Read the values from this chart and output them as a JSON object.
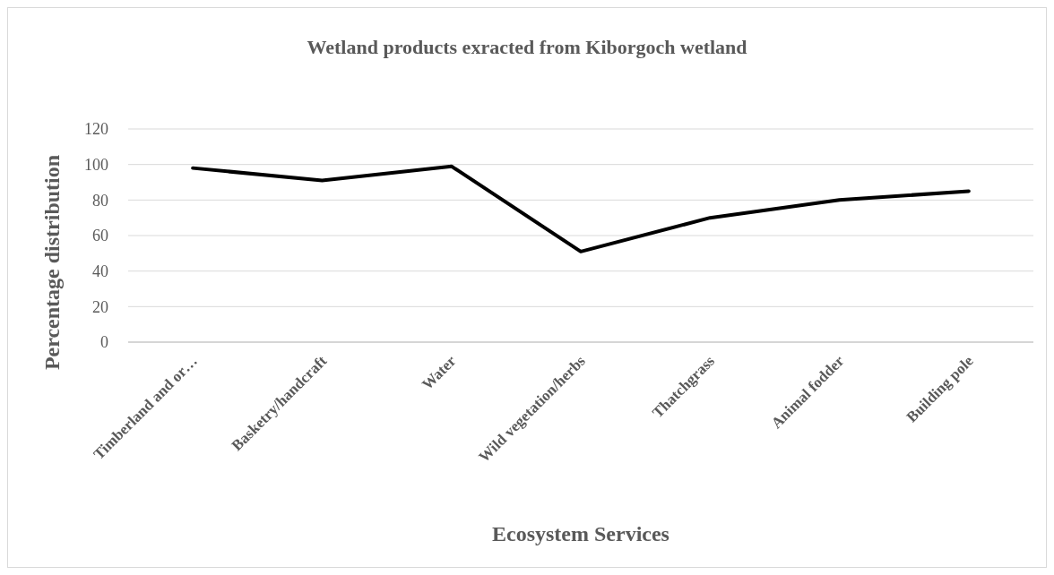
{
  "chart_data": {
    "type": "line",
    "title": "Wetland products exracted from Kiborgoch wetland",
    "xlabel": "Ecosystem Services",
    "ylabel": "Percentage distribution",
    "categories": [
      "Timberland and or…",
      "Basketry/handcraft",
      "Water",
      "Wild vegetation/herbs",
      "Thatchgrass",
      "Animal fodder",
      "Building pole"
    ],
    "series": [
      {
        "color": "#000000",
        "values": [
          98,
          91,
          99,
          51,
          70,
          80,
          85
        ]
      }
    ],
    "ylim": [
      0,
      120
    ],
    "yticks": [
      0,
      20,
      40,
      60,
      80,
      100,
      120
    ],
    "grid": "y",
    "marker": "none",
    "line_style": "solid"
  }
}
